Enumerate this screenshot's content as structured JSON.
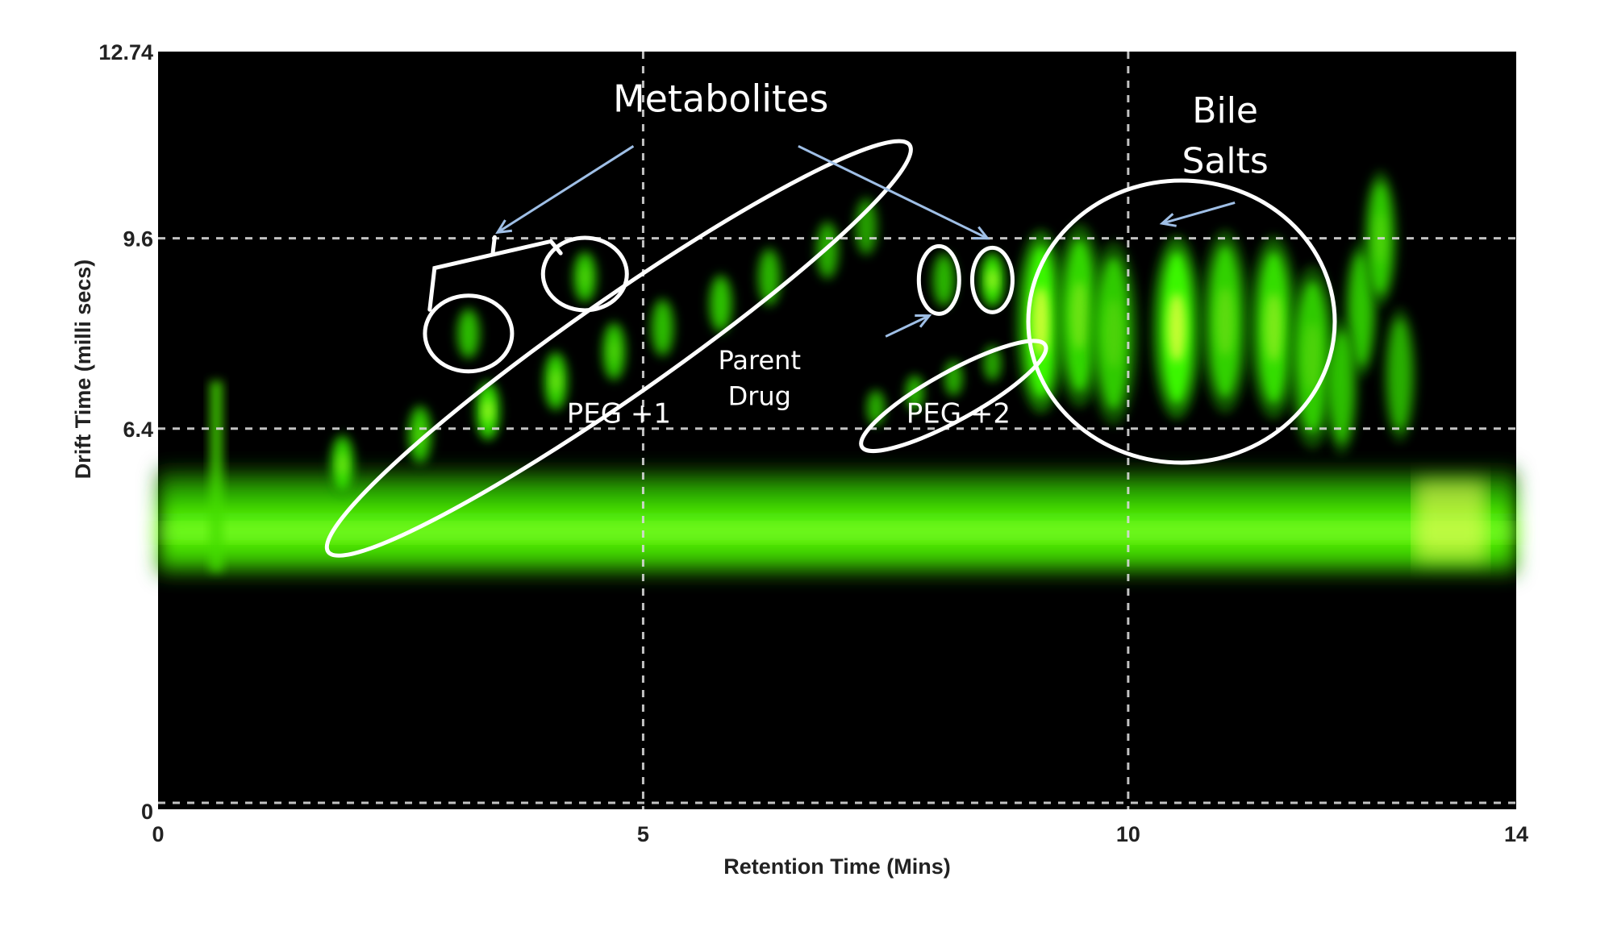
{
  "chart_data": {
    "type": "heatmap",
    "title": "",
    "xlabel": "Retention Time (Mins)",
    "ylabel": "Drift Time (milli secs)",
    "xlim": [
      0,
      14
    ],
    "ylim": [
      0,
      12.74
    ],
    "x_ticks": [
      {
        "value": 0,
        "label": "0"
      },
      {
        "value": 5,
        "label": "5"
      },
      {
        "value": 10,
        "label": "10"
      },
      {
        "value": 14,
        "label": "14"
      }
    ],
    "y_ticks": [
      {
        "value": 0,
        "label": "0"
      },
      {
        "value": 6.4,
        "label": "6.4"
      },
      {
        "value": 9.6,
        "label": "9.6"
      },
      {
        "value": 12.74,
        "label": "12.74"
      }
    ],
    "grid": true,
    "colors": {
      "background": "#000000",
      "signal": "#33ff00",
      "hot": "#ffff40",
      "annotation": "#ffffff",
      "arrow": "#9fbfe6"
    },
    "baseline_band": {
      "y_from": 4.3,
      "y_to": 5.4
    },
    "peg1_peaks": [
      {
        "x": 1.9,
        "y": 5.8,
        "i": 0.7
      },
      {
        "x": 2.7,
        "y": 6.3,
        "i": 0.6
      },
      {
        "x": 3.4,
        "y": 6.7,
        "i": 0.85
      },
      {
        "x": 4.1,
        "y": 7.2,
        "i": 0.7
      },
      {
        "x": 4.7,
        "y": 7.7,
        "i": 0.6
      },
      {
        "x": 5.2,
        "y": 8.1,
        "i": 0.5
      },
      {
        "x": 5.8,
        "y": 8.5,
        "i": 0.55
      },
      {
        "x": 6.3,
        "y": 8.95,
        "i": 0.45
      },
      {
        "x": 6.9,
        "y": 9.4,
        "i": 0.4
      },
      {
        "x": 7.3,
        "y": 9.8,
        "i": 0.3
      }
    ],
    "peg2_peaks": [
      {
        "x": 7.4,
        "y": 6.75,
        "i": 0.4
      },
      {
        "x": 7.8,
        "y": 7.0,
        "i": 0.45
      },
      {
        "x": 8.2,
        "y": 7.25,
        "i": 0.4
      },
      {
        "x": 8.6,
        "y": 7.5,
        "i": 0.35
      }
    ],
    "metabolite_peaks": [
      {
        "x": 3.2,
        "y": 8.0,
        "i": 0.5
      },
      {
        "x": 4.4,
        "y": 8.95,
        "i": 0.6
      }
    ],
    "parent_drug_peaks": [
      {
        "x": 8.1,
        "y": 8.9,
        "i": 0.45
      },
      {
        "x": 8.6,
        "y": 8.9,
        "i": 0.85
      }
    ],
    "bile_salt_peaks": [
      {
        "x": 9.1,
        "y": 8.2,
        "i": 1.0
      },
      {
        "x": 9.5,
        "y": 8.3,
        "i": 0.7
      },
      {
        "x": 9.85,
        "y": 8.0,
        "i": 0.6
      },
      {
        "x": 10.5,
        "y": 8.1,
        "i": 1.0
      },
      {
        "x": 11.0,
        "y": 8.2,
        "i": 0.65
      },
      {
        "x": 11.5,
        "y": 8.1,
        "i": 0.75
      },
      {
        "x": 11.9,
        "y": 7.6,
        "i": 0.6
      }
    ],
    "late_peaks": [
      {
        "x": 12.4,
        "y": 8.4,
        "i": 0.55
      },
      {
        "x": 12.6,
        "y": 9.6,
        "i": 0.6
      },
      {
        "x": 12.2,
        "y": 7.1,
        "i": 0.5
      },
      {
        "x": 12.8,
        "y": 7.3,
        "i": 0.4
      }
    ],
    "annotations": [
      {
        "text": "Metabolites",
        "x": 5.8,
        "y": 11.73
      },
      {
        "text": "Bile",
        "x": 11.0,
        "y": 11.55
      },
      {
        "text": "Salts",
        "x": 11.0,
        "y": 10.7
      },
      {
        "text": "Parent",
        "x": 6.2,
        "y": 7.4
      },
      {
        "text": "Drug",
        "x": 6.2,
        "y": 6.8
      },
      {
        "text": "PEG +1",
        "x": 4.75,
        "y": 6.5
      },
      {
        "text": "PEG +2",
        "x": 8.25,
        "y": 6.5
      }
    ]
  }
}
